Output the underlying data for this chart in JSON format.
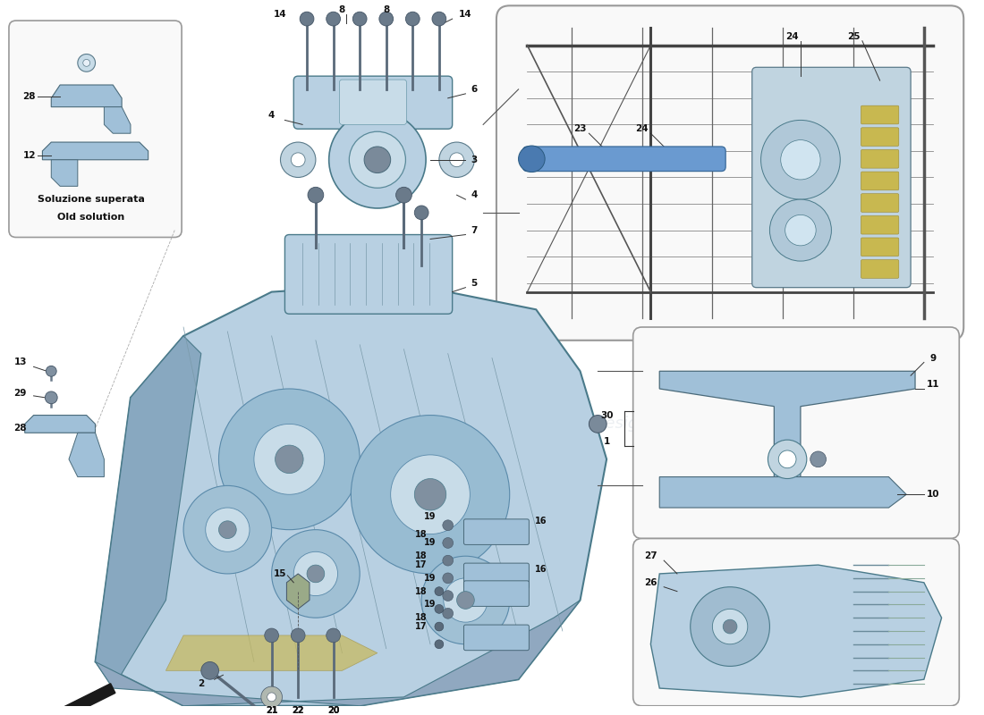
{
  "bg": "#ffffff",
  "blue": "#b8d0e2",
  "blue2": "#a0c0d8",
  "blue3": "#88a8c0",
  "line": "#333333",
  "label": "#111111",
  "box_edge": "#888888",
  "inset_bg": "#f9f9f9",
  "yellow": "#d8c870",
  "figw": 11.0,
  "figh": 8.0,
  "dpi": 100,
  "old_sol_text": [
    "Soluzione superata",
    "Old solution"
  ]
}
